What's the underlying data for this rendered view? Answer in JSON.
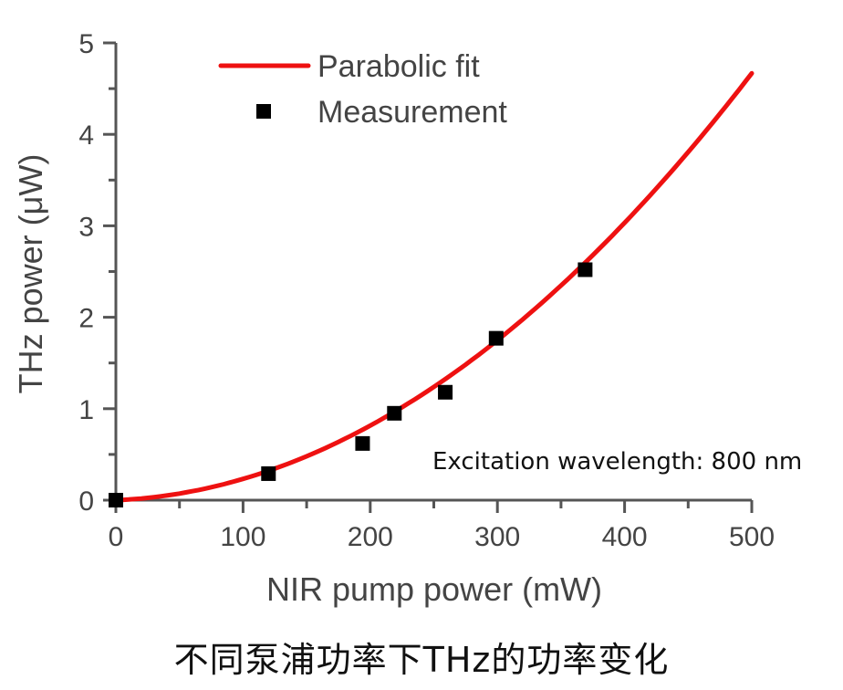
{
  "chart_data": {
    "type": "scatter",
    "title": "",
    "xlabel": "NIR pump power (mW)",
    "ylabel": "THz power (μW)",
    "xlim": [
      0,
      500
    ],
    "ylim": [
      0,
      5
    ],
    "x_ticks": [
      0,
      100,
      200,
      300,
      400,
      500
    ],
    "y_ticks": [
      0,
      1,
      2,
      3,
      4,
      5
    ],
    "x_ticks_labels": [
      "0",
      "100",
      "200",
      "300",
      "400",
      "500"
    ],
    "y_ticks_labels": [
      "0",
      "1",
      "2",
      "3",
      "4",
      "5"
    ],
    "grid": false,
    "legend_position": "top-left",
    "series": [
      {
        "name": "Measurement",
        "kind": "scatter",
        "marker": "square",
        "color": "#000000",
        "x": [
          0,
          120,
          194,
          219,
          259,
          299,
          369
        ],
        "y": [
          0,
          0.29,
          0.62,
          0.95,
          1.18,
          1.77,
          2.52
        ]
      },
      {
        "name": "Parabolic fit",
        "kind": "line",
        "color": "#ee1111",
        "equation": "y = a*x^2 + b*x",
        "coefficients": {
          "a": 1.753e-05,
          "b": 0.00057
        },
        "x_range": [
          0,
          500
        ]
      }
    ],
    "legend": [
      "Parabolic fit",
      "Measurement"
    ],
    "annotations": [
      "Excitation wavelength: 800 nm"
    ]
  },
  "caption": "不同泵浦功率下THz的功率变化",
  "colors": {
    "axis": "#555555",
    "fit": "#ee1111",
    "marker": "#000000"
  }
}
